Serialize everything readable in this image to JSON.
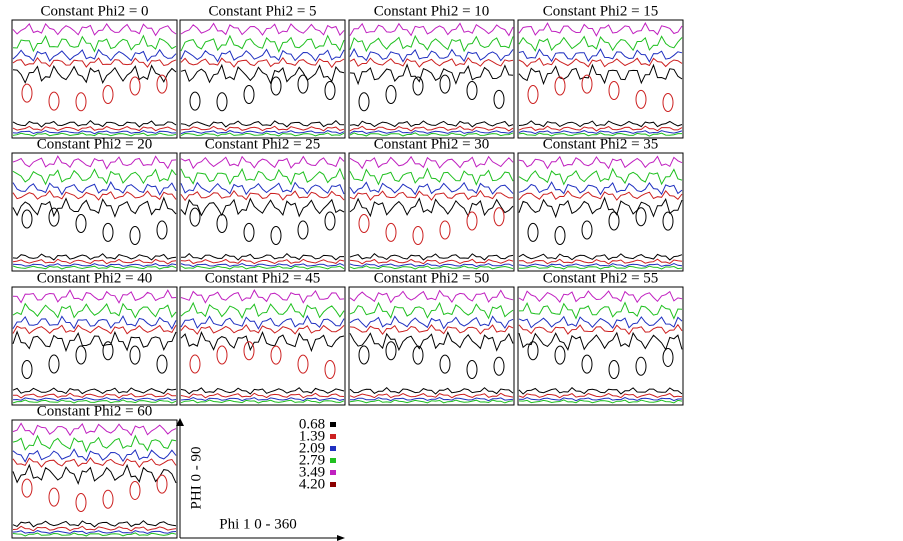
{
  "panels": [
    {
      "title": "Constant Phi2 = 0"
    },
    {
      "title": "Constant Phi2 = 5"
    },
    {
      "title": "Constant Phi2 = 10"
    },
    {
      "title": "Constant Phi2 = 15"
    },
    {
      "title": "Constant Phi2 = 20"
    },
    {
      "title": "Constant Phi2 = 25"
    },
    {
      "title": "Constant Phi2 = 30"
    },
    {
      "title": "Constant Phi2 = 35"
    },
    {
      "title": "Constant Phi2 = 40"
    },
    {
      "title": "Constant Phi2 = 45"
    },
    {
      "title": "Constant Phi2 = 50"
    },
    {
      "title": "Constant Phi2 = 55"
    },
    {
      "title": "Constant Phi2 = 60"
    }
  ],
  "legend": {
    "levels": [
      {
        "label": "0.68",
        "color": "#000000"
      },
      {
        "label": "1.39",
        "color": "#cc2020"
      },
      {
        "label": "2.09",
        "color": "#2030c0"
      },
      {
        "label": "2.79",
        "color": "#20c020"
      },
      {
        "label": "3.49",
        "color": "#c020c0"
      },
      {
        "label": "4.20",
        "color": "#8b0000"
      }
    ]
  },
  "axes": {
    "y_label": "PHI 0 - 90",
    "x_label": "Phi 1 0 - 360"
  }
}
